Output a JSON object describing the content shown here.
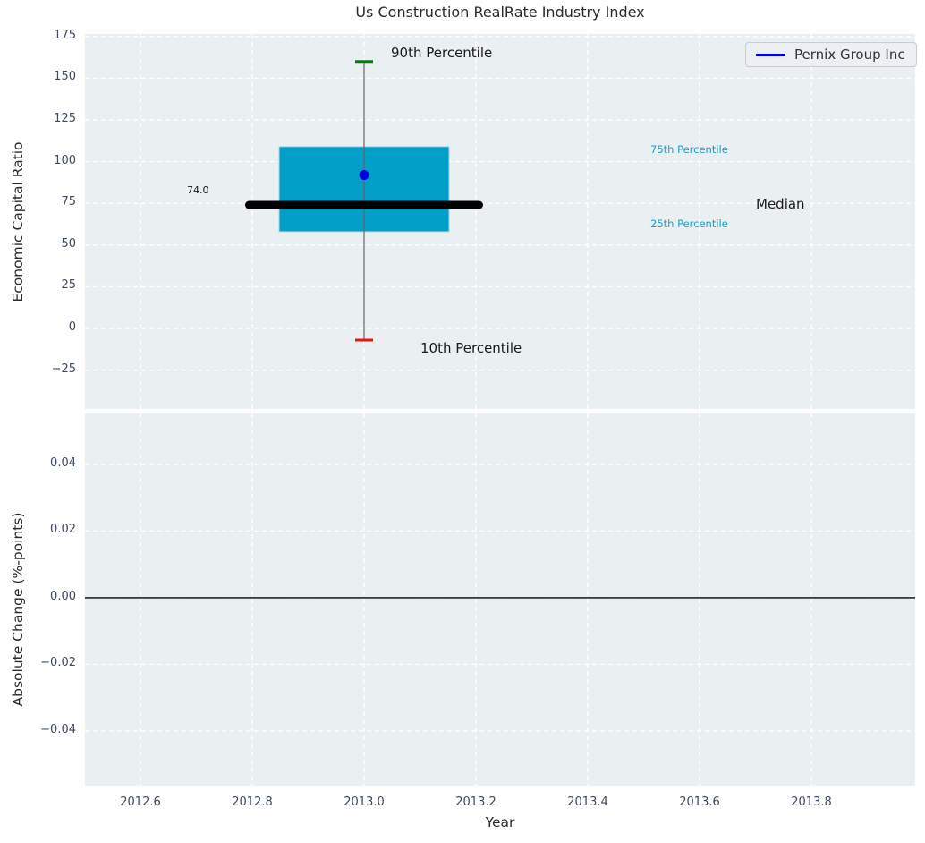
{
  "title": "Us Construction RealRate Industry Index",
  "legend": {
    "label": "Pernix Group Inc"
  },
  "colors": {
    "figure_bg": "#ffffff",
    "axes_bg": "#eaeff1",
    "grid": "#ffffff",
    "tick_text": "#3d4a5c",
    "title_text": "#2b2b2b",
    "box_fill": "#029fc9",
    "box_edge": "#a8d4e4",
    "median_line": "#000000",
    "whisker_line": "#666666",
    "cap_90th": "#008000",
    "cap_10th": "#ee1111",
    "company_dot": "#0000dc",
    "legend_line": "#0000e6",
    "percentile_label": "#1e9cc9",
    "annotation_text": "#1a1a1a",
    "zero_line": "#000000"
  },
  "chart_data": [
    {
      "type": "box",
      "title": "Us Construction RealRate Industry Index",
      "ylabel": "Economic Capital Ratio",
      "xlabel": "",
      "x": 2013.0,
      "box": {
        "p90": 160,
        "p75": 109,
        "median": 74.0,
        "p25": 58,
        "p10": -7
      },
      "company_point": {
        "name": "Pernix Group Inc",
        "x": 2013.0,
        "y": 92
      },
      "median_value_label": "74.0",
      "annotations": {
        "p90": "90th Percentile",
        "p75": "75th Percentile",
        "median": "Median",
        "p25": "25th Percentile",
        "p10": "10th Percentile"
      },
      "xlim": [
        2012.5008,
        2013.9856
      ],
      "ylim": [
        -48.3,
        176.5
      ],
      "xticks": [
        2012.6,
        2012.8,
        2013.0,
        2013.2,
        2013.4,
        2013.6,
        2013.8
      ],
      "xtick_labels": [
        "2012.6",
        "2012.8",
        "2013.0",
        "2013.2",
        "2013.4",
        "2013.6",
        "2013.8"
      ],
      "yticks": [
        175,
        150,
        125,
        100,
        75,
        50,
        25,
        0,
        -25
      ],
      "ytick_labels": [
        "175",
        "150",
        "125",
        "100",
        "75",
        "50",
        "25",
        "0",
        "−25"
      ],
      "grid": true,
      "legend_position": "upper right"
    },
    {
      "type": "line",
      "title": "",
      "ylabel": "Absolute Change (%-points)",
      "xlabel": "Year",
      "zero_line": 0.0,
      "xlim": [
        2012.5008,
        2013.9856
      ],
      "ylim": [
        -0.0564,
        0.0553
      ],
      "yticks": [
        0.04,
        0.02,
        0.0,
        -0.02,
        -0.04
      ],
      "ytick_labels": [
        "0.04",
        "0.02",
        "0.00",
        "−0.02",
        "−0.04"
      ],
      "grid": true
    }
  ]
}
